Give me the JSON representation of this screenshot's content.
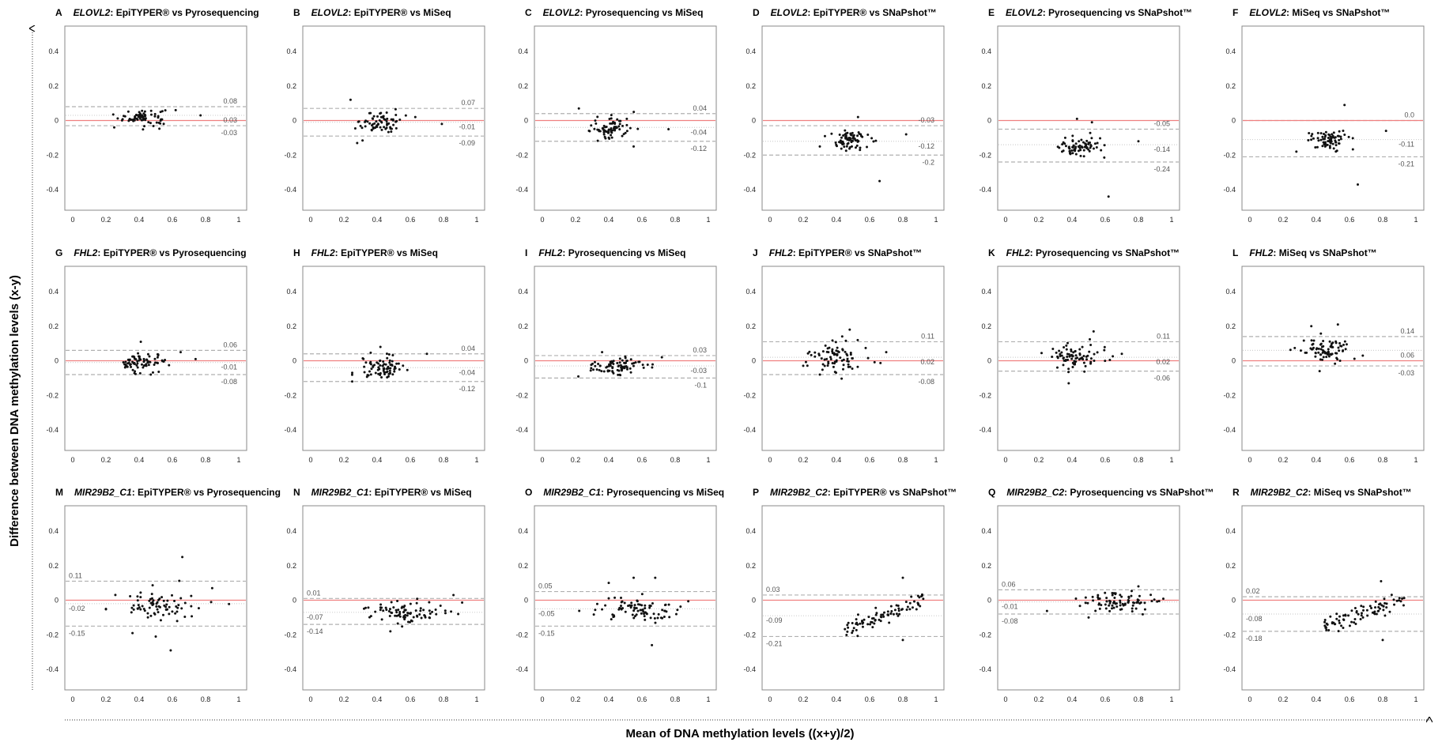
{
  "figure": {
    "xlabel": "Mean of DNA methylation levels ((x+y)/2)",
    "ylabel": "Difference between DNA methylation levels (x-y)",
    "colors": {
      "zero_line": "#f08080",
      "limit_line": "#b0b0b0",
      "mean_line": "#d0d0d0",
      "point": "#111111",
      "frame": "#888888"
    }
  },
  "chart_data": [
    {
      "letter": "A",
      "gene": "ELOVL2",
      "method1": "EpiTYPER®",
      "method2": "Pyrosequencing",
      "type": "scatter",
      "xlim": [
        0,
        1
      ],
      "ylim": [
        -0.5,
        0.5
      ],
      "xticks": [
        "0",
        "0.2",
        "0.4",
        "0.6",
        "0.8",
        "1"
      ],
      "yticks": [
        "0.4",
        "0.2",
        "0",
        "-0.2",
        "-0.4"
      ],
      "mean": 0.03,
      "upper": 0.08,
      "lower": -0.03,
      "labels": [
        "0.08",
        "0.03",
        "-0.03"
      ],
      "cloud": {
        "xc": 0.42,
        "xs": 0.07,
        "yc": 0.02,
        "ys": 0.025,
        "n": 70
      },
      "outliers": [
        [
          0.77,
          0.03
        ],
        [
          0.62,
          0.06
        ],
        [
          0.25,
          -0.04
        ]
      ]
    },
    {
      "letter": "B",
      "gene": "ELOVL2",
      "method1": "EpiTYPER®",
      "method2": "MiSeq",
      "type": "scatter",
      "xlim": [
        0,
        1
      ],
      "ylim": [
        -0.5,
        0.5
      ],
      "xticks": [
        "0",
        "0.2",
        "0.4",
        "0.6",
        "0.8",
        "1"
      ],
      "yticks": [
        "0.4",
        "0.2",
        "0",
        "-0.2",
        "-0.4"
      ],
      "mean": -0.01,
      "upper": 0.07,
      "lower": -0.09,
      "labels": [
        "0.07",
        "-0.01",
        "-0.09"
      ],
      "cloud": {
        "xc": 0.42,
        "xs": 0.06,
        "yc": -0.01,
        "ys": 0.035,
        "n": 70
      },
      "outliers": [
        [
          0.24,
          0.12
        ],
        [
          0.79,
          -0.02
        ],
        [
          0.28,
          -0.13
        ],
        [
          0.63,
          0.02
        ]
      ]
    },
    {
      "letter": "C",
      "gene": "ELOVL2",
      "method1": "Pyrosequencing",
      "method2": "MiSeq",
      "type": "scatter",
      "xlim": [
        0,
        1
      ],
      "ylim": [
        -0.5,
        0.5
      ],
      "xticks": [
        "0",
        "0.2",
        "0.4",
        "0.6",
        "0.8",
        "1"
      ],
      "yticks": [
        "0.4",
        "0.2",
        "0",
        "-0.2",
        "-0.4"
      ],
      "mean": -0.04,
      "upper": 0.04,
      "lower": -0.12,
      "labels": [
        "0.04",
        "-0.04",
        "-0.12"
      ],
      "cloud": {
        "xc": 0.42,
        "xs": 0.07,
        "yc": -0.04,
        "ys": 0.035,
        "n": 75
      },
      "outliers": [
        [
          0.22,
          0.07
        ],
        [
          0.76,
          -0.05
        ],
        [
          0.55,
          -0.15
        ]
      ]
    },
    {
      "letter": "D",
      "gene": "ELOVL2",
      "method1": "EpiTYPER®",
      "method2": "SNaPshot™",
      "type": "scatter",
      "xlim": [
        0,
        1
      ],
      "ylim": [
        -0.5,
        0.5
      ],
      "xticks": [
        "0",
        "0.2",
        "0.4",
        "0.6",
        "0.8",
        "1"
      ],
      "yticks": [
        "0.4",
        "0.2",
        "0",
        "-0.2",
        "-0.4"
      ],
      "mean": -0.12,
      "upper": -0.03,
      "lower": -0.2,
      "labels": [
        "-0.03",
        "-0.12",
        "-0.2"
      ],
      "cloud": {
        "xc": 0.47,
        "xs": 0.06,
        "yc": -0.12,
        "ys": 0.03,
        "n": 75
      },
      "outliers": [
        [
          0.66,
          -0.35
        ],
        [
          0.53,
          0.02
        ],
        [
          0.82,
          -0.08
        ],
        [
          0.3,
          -0.15
        ]
      ]
    },
    {
      "letter": "E",
      "gene": "ELOVL2",
      "method1": "Pyrosequencing",
      "method2": "SNaPshot™",
      "type": "scatter",
      "xlim": [
        0,
        1
      ],
      "ylim": [
        -0.5,
        0.5
      ],
      "xticks": [
        "0",
        "0.2",
        "0.4",
        "0.6",
        "0.8",
        "1"
      ],
      "yticks": [
        "0.4",
        "0.2",
        "0",
        "-0.2",
        "-0.4"
      ],
      "mean": -0.14,
      "upper": -0.05,
      "lower": -0.24,
      "labels": [
        "-0.05",
        "-0.14",
        "-0.24"
      ],
      "cloud": {
        "xc": 0.45,
        "xs": 0.06,
        "yc": -0.15,
        "ys": 0.03,
        "n": 75
      },
      "outliers": [
        [
          0.62,
          -0.44
        ],
        [
          0.43,
          0.01
        ],
        [
          0.52,
          -0.01
        ],
        [
          0.8,
          -0.12
        ]
      ]
    },
    {
      "letter": "F",
      "gene": "ELOVL2",
      "method1": "MiSeq",
      "method2": "SNaPshot™",
      "type": "scatter",
      "xlim": [
        0,
        1
      ],
      "ylim": [
        -0.5,
        0.5
      ],
      "xticks": [
        "0",
        "0.2",
        "0.4",
        "0.6",
        "0.8",
        "1"
      ],
      "yticks": [
        "0.4",
        "0.2",
        "0",
        "-0.2",
        "-0.4"
      ],
      "mean": -0.11,
      "upper": 0.0,
      "lower": -0.21,
      "labels": [
        "0.0",
        "-0.11",
        "-0.21"
      ],
      "cloud": {
        "xc": 0.47,
        "xs": 0.06,
        "yc": -0.11,
        "ys": 0.03,
        "n": 75
      },
      "outliers": [
        [
          0.65,
          -0.37
        ],
        [
          0.57,
          0.09
        ],
        [
          0.82,
          -0.06
        ],
        [
          0.28,
          -0.18
        ]
      ]
    },
    {
      "letter": "G",
      "gene": "FHL2",
      "method1": "EpiTYPER®",
      "method2": "Pyrosequencing",
      "type": "scatter",
      "xlim": [
        0,
        1
      ],
      "ylim": [
        -0.5,
        0.5
      ],
      "xticks": [
        "0",
        "0.2",
        "0.4",
        "0.6",
        "0.8",
        "1"
      ],
      "yticks": [
        "0.4",
        "0.2",
        "0",
        "-0.2",
        "-0.4"
      ],
      "mean": -0.01,
      "upper": 0.06,
      "lower": -0.08,
      "labels": [
        "0.06",
        "-0.01",
        "-0.08"
      ],
      "cloud": {
        "xc": 0.42,
        "xs": 0.07,
        "yc": -0.01,
        "ys": 0.03,
        "n": 75
      },
      "outliers": [
        [
          0.41,
          0.11
        ],
        [
          0.74,
          0.01
        ],
        [
          0.65,
          0.05
        ]
      ]
    },
    {
      "letter": "H",
      "gene": "FHL2",
      "method1": "EpiTYPER®",
      "method2": "MiSeq",
      "type": "scatter",
      "xlim": [
        0,
        1
      ],
      "ylim": [
        -0.5,
        0.5
      ],
      "xticks": [
        "0",
        "0.2",
        "0.4",
        "0.6",
        "0.8",
        "1"
      ],
      "yticks": [
        "0.4",
        "0.2",
        "0",
        "-0.2",
        "-0.4"
      ],
      "mean": -0.04,
      "upper": 0.04,
      "lower": -0.12,
      "labels": [
        "0.04",
        "-0.04",
        "-0.12"
      ],
      "cloud": {
        "xc": 0.44,
        "xs": 0.07,
        "yc": -0.04,
        "ys": 0.035,
        "n": 80
      },
      "outliers": [
        [
          0.7,
          0.04
        ],
        [
          0.42,
          0.08
        ],
        [
          0.25,
          -0.12
        ]
      ]
    },
    {
      "letter": "I",
      "gene": "FHL2",
      "method1": "Pyrosequencing",
      "method2": "MiSeq",
      "type": "scatter",
      "xlim": [
        0,
        1
      ],
      "ylim": [
        -0.5,
        0.5
      ],
      "xticks": [
        "0",
        "0.2",
        "0.4",
        "0.6",
        "0.8",
        "1"
      ],
      "yticks": [
        "0.4",
        "0.2",
        "0",
        "-0.2",
        "-0.4"
      ],
      "mean": -0.03,
      "upper": 0.03,
      "lower": -0.1,
      "labels": [
        "0.03",
        "-0.03",
        "-0.1"
      ],
      "cloud": {
        "xc": 0.44,
        "xs": 0.08,
        "yc": -0.03,
        "ys": 0.03,
        "n": 80
      },
      "outliers": [
        [
          0.72,
          0.02
        ],
        [
          0.36,
          0.05
        ]
      ]
    },
    {
      "letter": "J",
      "gene": "FHL2",
      "method1": "EpiTYPER®",
      "method2": "SNaPshot™",
      "type": "scatter",
      "xlim": [
        0,
        1
      ],
      "ylim": [
        -0.5,
        0.5
      ],
      "xticks": [
        "0",
        "0.2",
        "0.4",
        "0.6",
        "0.8",
        "1"
      ],
      "yticks": [
        "0.4",
        "0.2",
        "0",
        "-0.2",
        "-0.4"
      ],
      "mean": 0.02,
      "upper": 0.11,
      "lower": -0.08,
      "labels": [
        "0.11",
        "0.02",
        "-0.08"
      ],
      "cloud": {
        "xc": 0.4,
        "xs": 0.08,
        "yc": 0.02,
        "ys": 0.045,
        "n": 80
      },
      "outliers": [
        [
          0.48,
          0.18
        ],
        [
          0.3,
          -0.08
        ],
        [
          0.7,
          0.05
        ]
      ]
    },
    {
      "letter": "K",
      "gene": "FHL2",
      "method1": "Pyrosequencing",
      "method2": "SNaPshot™",
      "type": "scatter",
      "xlim": [
        0,
        1
      ],
      "ylim": [
        -0.5,
        0.5
      ],
      "xticks": [
        "0",
        "0.2",
        "0.4",
        "0.6",
        "0.8",
        "1"
      ],
      "yticks": [
        "0.4",
        "0.2",
        "0",
        "-0.2",
        "-0.4"
      ],
      "mean": 0.02,
      "upper": 0.11,
      "lower": -0.06,
      "labels": [
        "0.11",
        "0.02",
        "-0.06"
      ],
      "cloud": {
        "xc": 0.42,
        "xs": 0.08,
        "yc": 0.02,
        "ys": 0.04,
        "n": 80
      },
      "outliers": [
        [
          0.53,
          0.17
        ],
        [
          0.38,
          -0.13
        ],
        [
          0.7,
          0.04
        ]
      ]
    },
    {
      "letter": "L",
      "gene": "FHL2",
      "method1": "MiSeq",
      "method2": "SNaPshot™",
      "type": "scatter",
      "xlim": [
        0,
        1
      ],
      "ylim": [
        -0.5,
        0.5
      ],
      "xticks": [
        "0",
        "0.2",
        "0.4",
        "0.6",
        "0.8",
        "1"
      ],
      "yticks": [
        "0.4",
        "0.2",
        "0",
        "-0.2",
        "-0.4"
      ],
      "mean": 0.06,
      "upper": 0.14,
      "lower": -0.03,
      "labels": [
        "0.14",
        "0.06",
        "-0.03"
      ],
      "cloud": {
        "xc": 0.45,
        "xs": 0.08,
        "yc": 0.06,
        "ys": 0.035,
        "n": 80
      },
      "outliers": [
        [
          0.37,
          0.2
        ],
        [
          0.53,
          0.21
        ],
        [
          0.42,
          -0.06
        ],
        [
          0.68,
          0.03
        ]
      ]
    },
    {
      "letter": "M",
      "gene": "MIR29B2_C1",
      "method1": "EpiTYPER®",
      "method2": "Pyrosequencing",
      "type": "scatter",
      "xlim": [
        0,
        1
      ],
      "ylim": [
        -0.5,
        0.5
      ],
      "xticks": [
        "0",
        "0.2",
        "0.4",
        "0.6",
        "0.8",
        "1"
      ],
      "yticks": [
        "0.4",
        "0.2",
        "0",
        "-0.2",
        "-0.4"
      ],
      "mean": -0.02,
      "upper": 0.11,
      "lower": -0.15,
      "labels": [
        "0.11",
        "-0.02",
        "-0.15"
      ],
      "cloud": {
        "xc": 0.55,
        "xs": 0.13,
        "yc": -0.02,
        "ys": 0.04,
        "n": 80
      },
      "outliers": [
        [
          0.59,
          -0.29
        ],
        [
          0.66,
          0.25
        ],
        [
          0.36,
          -0.19
        ],
        [
          0.5,
          -0.21
        ],
        [
          0.84,
          0.07
        ]
      ]
    },
    {
      "letter": "N",
      "gene": "MIR29B2_C1",
      "method1": "EpiTYPER®",
      "method2": "MiSeq",
      "type": "scatter",
      "xlim": [
        0,
        1
      ],
      "ylim": [
        -0.5,
        0.5
      ],
      "xticks": [
        "0",
        "0.2",
        "0.4",
        "0.6",
        "0.8",
        "1"
      ],
      "yticks": [
        "0.4",
        "0.2",
        "0",
        "-0.2",
        "-0.4"
      ],
      "mean": -0.07,
      "upper": 0.01,
      "lower": -0.14,
      "labels": [
        "0.01",
        "-0.07",
        "-0.14"
      ],
      "cloud": {
        "xc": 0.6,
        "xs": 0.13,
        "yc": -0.07,
        "ys": 0.03,
        "n": 85
      },
      "outliers": [
        [
          0.48,
          -0.18
        ],
        [
          0.86,
          0.03
        ]
      ]
    },
    {
      "letter": "O",
      "gene": "MIR29B2_C1",
      "method1": "Pyrosequencing",
      "method2": "MiSeq",
      "type": "scatter",
      "xlim": [
        0,
        1
      ],
      "ylim": [
        -0.5,
        0.5
      ],
      "xticks": [
        "0",
        "0.2",
        "0.4",
        "0.6",
        "0.8",
        "1"
      ],
      "yticks": [
        "0.4",
        "0.2",
        "0",
        "-0.2",
        "-0.4"
      ],
      "mean": -0.05,
      "upper": 0.05,
      "lower": -0.15,
      "labels": [
        "0.05",
        "-0.05",
        "-0.15"
      ],
      "cloud": {
        "xc": 0.58,
        "xs": 0.13,
        "yc": -0.05,
        "ys": 0.03,
        "n": 85
      },
      "outliers": [
        [
          0.66,
          -0.26
        ],
        [
          0.55,
          0.13
        ],
        [
          0.68,
          0.13
        ],
        [
          0.4,
          0.1
        ]
      ]
    },
    {
      "letter": "P",
      "gene": "MIR29B2_C2",
      "method1": "EpiTYPER®",
      "method2": "SNaPshot™",
      "type": "scatter",
      "xlim": [
        0,
        1
      ],
      "ylim": [
        -0.5,
        0.5
      ],
      "xticks": [
        "0",
        "0.2",
        "0.4",
        "0.6",
        "0.8",
        "1"
      ],
      "yticks": [
        "0.4",
        "0.2",
        "0",
        "-0.2",
        "-0.4"
      ],
      "mean": -0.09,
      "upper": 0.03,
      "lower": -0.21,
      "labels": [
        "0.03",
        "-0.09",
        "-0.21"
      ],
      "cloud": {
        "trend": true,
        "x0": 0.45,
        "x1": 0.93,
        "y0": -0.17,
        "y1": 0.0,
        "ys": 0.025,
        "n": 85
      },
      "outliers": [
        [
          0.8,
          -0.23
        ],
        [
          0.8,
          0.13
        ]
      ]
    },
    {
      "letter": "Q",
      "gene": "MIR29B2_C2",
      "method1": "Pyrosequencing",
      "method2": "SNaPshot™",
      "type": "scatter",
      "xlim": [
        0,
        1
      ],
      "ylim": [
        -0.5,
        0.5
      ],
      "xticks": [
        "0",
        "0.2",
        "0.4",
        "0.6",
        "0.8",
        "1"
      ],
      "yticks": [
        "0.4",
        "0.2",
        "0",
        "-0.2",
        "-0.4"
      ],
      "mean": -0.01,
      "upper": 0.06,
      "lower": -0.08,
      "labels": [
        "0.06",
        "-0.01",
        "-0.08"
      ],
      "cloud": {
        "xc": 0.68,
        "xs": 0.13,
        "yc": -0.01,
        "ys": 0.03,
        "n": 85
      },
      "outliers": [
        [
          0.8,
          0.08
        ],
        [
          0.5,
          -0.1
        ]
      ]
    },
    {
      "letter": "R",
      "gene": "MIR29B2_C2",
      "method1": "MiSeq",
      "method2": "SNaPshot™",
      "type": "scatter",
      "xlim": [
        0,
        1
      ],
      "ylim": [
        -0.5,
        0.5
      ],
      "xticks": [
        "0",
        "0.2",
        "0.4",
        "0.6",
        "0.8",
        "1"
      ],
      "yticks": [
        "0.4",
        "0.2",
        "0",
        "-0.2",
        "-0.4"
      ],
      "mean": -0.08,
      "upper": 0.02,
      "lower": -0.18,
      "labels": [
        "0.02",
        "-0.08",
        "-0.18"
      ],
      "cloud": {
        "trend": true,
        "x0": 0.45,
        "x1": 0.93,
        "y0": -0.15,
        "y1": 0.0,
        "ys": 0.025,
        "n": 85
      },
      "outliers": [
        [
          0.79,
          0.11
        ],
        [
          0.8,
          -0.23
        ]
      ]
    }
  ]
}
